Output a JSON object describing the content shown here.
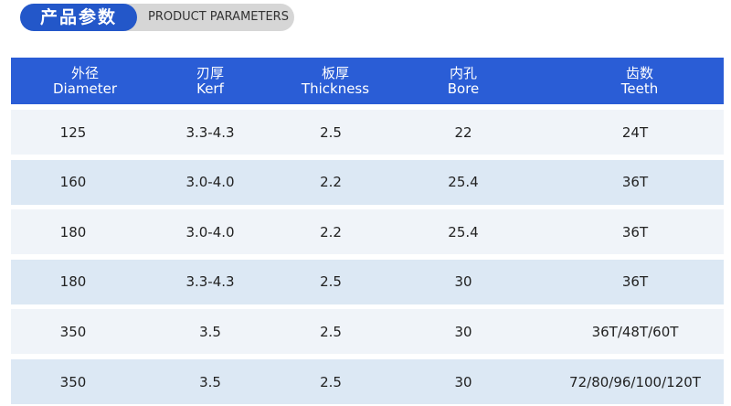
{
  "header": {
    "title": "产品参数",
    "subtitle": "PRODUCT PARAMETERS"
  },
  "table": {
    "columns": [
      {
        "cn": "外径",
        "en": "Diameter"
      },
      {
        "cn": "刃厚",
        "en": "Kerf"
      },
      {
        "cn": "板厚",
        "en": "Thickness"
      },
      {
        "cn": "内孔",
        "en": "Bore"
      },
      {
        "cn": "齿数",
        "en": "Teeth"
      }
    ],
    "rows": [
      [
        "125",
        "3.3-4.3",
        "2.5",
        "22",
        "24T"
      ],
      [
        "160",
        "3.0-4.0",
        "2.2",
        "25.4",
        "36T"
      ],
      [
        "180",
        "3.0-4.0",
        "2.2",
        "25.4",
        "36T"
      ],
      [
        "180",
        "3.3-4.3",
        "2.5",
        "30",
        "36T"
      ],
      [
        "350",
        "3.5",
        "2.5",
        "30",
        "36T/48T/60T"
      ],
      [
        "350",
        "3.5",
        "2.5",
        "30",
        "72/80/96/100/120T"
      ]
    ]
  }
}
